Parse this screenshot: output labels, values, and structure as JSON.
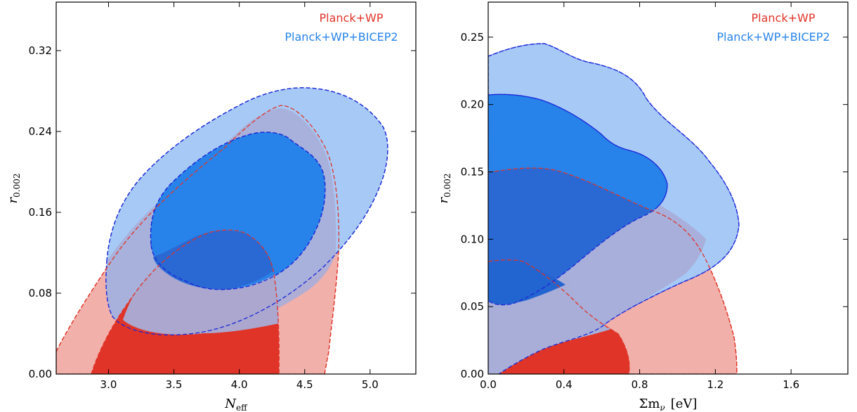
{
  "colors": {
    "planck_inner": "#e03428",
    "planck_outer": "#f2b0aa",
    "bicep_inner": "#2783ea",
    "bicep_outer": "#a7c9f6",
    "planck_edge": "#e03428",
    "bicep_edge": "#1a28d8",
    "overlap_outer": "#a8aed8",
    "overlap_inner": "#2a68d4"
  },
  "chart_data": [
    {
      "type": "contour",
      "xlabel": "N",
      "xlabel_sub": "eff",
      "ylabel": "r",
      "ylabel_sub": "0.002",
      "xlim": [
        2.6,
        5.35
      ],
      "ylim": [
        0.0,
        0.368
      ],
      "xticks": [
        "3.0",
        "3.5",
        "4.0",
        "4.5",
        "5.0"
      ],
      "yticks": [
        "0.00",
        "0.08",
        "0.16",
        "0.24",
        "0.32"
      ],
      "xtick_values": [
        3.0,
        3.5,
        4.0,
        4.5,
        5.0
      ],
      "ytick_values": [
        0.0,
        0.08,
        0.16,
        0.24,
        0.32
      ],
      "legend": [
        "Planck+WP",
        "Planck+WP+BICEP2"
      ],
      "legend_position": "top-right",
      "series": [
        {
          "name": "Planck+WP",
          "level": "95%",
          "outline": [
            [
              2.6,
              0.021
            ],
            [
              2.82,
              0.075
            ],
            [
              3.05,
              0.117
            ],
            [
              3.55,
              0.185
            ],
            [
              4.0,
              0.235
            ],
            [
              4.3,
              0.27
            ],
            [
              4.55,
              0.22
            ],
            [
              4.72,
              0.14
            ],
            [
              4.75,
              0.07
            ],
            [
              4.7,
              0.03
            ],
            [
              4.63,
              0.0
            ],
            [
              2.85,
              0.0
            ],
            [
              2.6,
              0.0
            ]
          ]
        },
        {
          "name": "Planck+WP",
          "level": "68%",
          "outline": [
            [
              2.85,
              0.0
            ],
            [
              3.05,
              0.045
            ],
            [
              3.3,
              0.086
            ],
            [
              3.6,
              0.122
            ],
            [
              3.9,
              0.15
            ],
            [
              4.1,
              0.14
            ],
            [
              4.23,
              0.11
            ],
            [
              4.28,
              0.05
            ],
            [
              4.25,
              0.0
            ]
          ]
        },
        {
          "name": "Planck+WP+BICEP2",
          "level": "95%",
          "outline": [
            [
              3.0,
              0.1
            ],
            [
              3.2,
              0.175
            ],
            [
              3.55,
              0.23
            ],
            [
              4.0,
              0.28
            ],
            [
              4.45,
              0.295
            ],
            [
              4.85,
              0.27
            ],
            [
              5.12,
              0.235
            ],
            [
              5.08,
              0.18
            ],
            [
              4.7,
              0.13
            ],
            [
              4.2,
              0.085
            ],
            [
              3.8,
              0.055
            ],
            [
              3.45,
              0.045
            ],
            [
              3.0,
              0.06
            ]
          ]
        },
        {
          "name": "Planck+WP+BICEP2",
          "level": "68%",
          "outline": [
            [
              3.4,
              0.15
            ],
            [
              3.6,
              0.2
            ],
            [
              4.0,
              0.24
            ],
            [
              4.35,
              0.23
            ],
            [
              4.65,
              0.2
            ],
            [
              4.6,
              0.15
            ],
            [
              4.3,
              0.11
            ],
            [
              3.95,
              0.085
            ],
            [
              3.6,
              0.1
            ],
            [
              3.4,
              0.13
            ]
          ]
        }
      ]
    },
    {
      "type": "contour",
      "xlabel": "Σm",
      "xlabel_sub": "ν",
      "xlabel_unit": "[eV]",
      "ylabel": "r",
      "ylabel_sub": "0.002",
      "xlim": [
        0.0,
        1.9
      ],
      "ylim": [
        0.0,
        0.276
      ],
      "xticks": [
        "0.0",
        "0.4",
        "0.8",
        "1.2",
        "1.6"
      ],
      "yticks": [
        "0.00",
        "0.05",
        "0.10",
        "0.15",
        "0.20",
        "0.25"
      ],
      "xtick_values": [
        0.0,
        0.4,
        0.8,
        1.2,
        1.6
      ],
      "ytick_values": [
        0.0,
        0.05,
        0.1,
        0.15,
        0.2,
        0.25
      ],
      "legend": [
        "Planck+WP",
        "Planck+WP+BICEP2"
      ],
      "legend_position": "top-right",
      "series": [
        {
          "name": "Planck+WP",
          "level": "95%",
          "outline": [
            [
              0.0,
              0.0
            ],
            [
              0.0,
              0.15
            ],
            [
              0.2,
              0.153
            ],
            [
              0.5,
              0.14
            ],
            [
              0.85,
              0.12
            ],
            [
              1.1,
              0.09
            ],
            [
              1.25,
              0.055
            ],
            [
              1.33,
              0.02
            ],
            [
              1.35,
              0.0
            ]
          ]
        },
        {
          "name": "Planck+WP",
          "level": "68%",
          "outline": [
            [
              0.0,
              0.0
            ],
            [
              0.0,
              0.08
            ],
            [
              0.12,
              0.085
            ],
            [
              0.35,
              0.065
            ],
            [
              0.6,
              0.04
            ],
            [
              0.75,
              0.015
            ],
            [
              0.78,
              0.0
            ]
          ]
        },
        {
          "name": "Planck+WP+BICEP2",
          "level": "95%",
          "outline": [
            [
              0.0,
              0.0
            ],
            [
              0.0,
              0.236
            ],
            [
              0.3,
              0.245
            ],
            [
              0.55,
              0.232
            ],
            [
              0.85,
              0.215
            ],
            [
              1.05,
              0.185
            ],
            [
              1.2,
              0.16
            ],
            [
              1.32,
              0.12
            ],
            [
              1.28,
              0.085
            ],
            [
              1.05,
              0.05
            ],
            [
              0.6,
              0.025
            ],
            [
              0.3,
              0.0
            ]
          ]
        },
        {
          "name": "Planck+WP+BICEP2",
          "level": "68%",
          "outline": [
            [
              0.0,
              0.055
            ],
            [
              0.0,
              0.205
            ],
            [
              0.35,
              0.2
            ],
            [
              0.6,
              0.175
            ],
            [
              0.92,
              0.158
            ],
            [
              0.98,
              0.14
            ],
            [
              0.85,
              0.115
            ],
            [
              0.6,
              0.09
            ],
            [
              0.3,
              0.06
            ],
            [
              0.1,
              0.052
            ]
          ]
        }
      ]
    }
  ]
}
